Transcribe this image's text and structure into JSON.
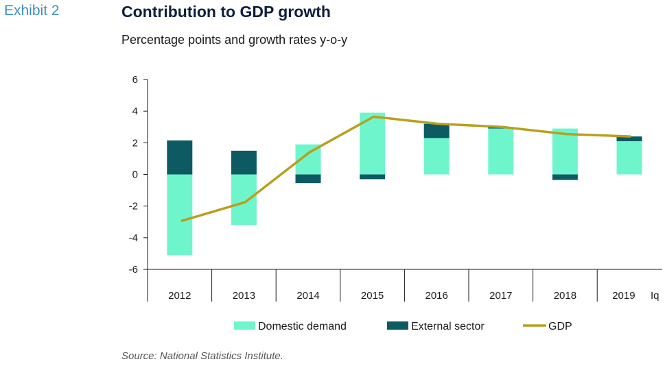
{
  "header": {
    "exhibit": "Exhibit 2",
    "title": "Contribution to GDP growth",
    "subtitle": "Percentage points and growth rates y-o-y"
  },
  "source": "Source: National Statistics Institute.",
  "colors": {
    "domestic": "#6ff5cc",
    "external": "#0d5a63",
    "gdp": "#b8a01e",
    "axis": "#1a1a1a"
  },
  "chart_data": {
    "type": "bar",
    "stacked": true,
    "categories": [
      "2012",
      "2013",
      "2014",
      "2015",
      "2016",
      "2017",
      "2018",
      "2019"
    ],
    "last_category_suffix": "Iq",
    "ylim": [
      -6,
      6
    ],
    "yticks": [
      "6",
      "4",
      "2",
      "0",
      "-2",
      "-4",
      "-6"
    ],
    "series": [
      {
        "name": "Domestic demand",
        "kind": "bar",
        "values": [
          -5.1,
          -3.2,
          1.9,
          3.9,
          2.3,
          2.9,
          2.9,
          2.1
        ]
      },
      {
        "name": "External sector",
        "kind": "bar",
        "values": [
          2.15,
          1.5,
          -0.55,
          -0.3,
          0.9,
          0.1,
          -0.35,
          0.3
        ]
      },
      {
        "name": "GDP",
        "kind": "line",
        "values": [
          -2.95,
          -1.75,
          1.4,
          3.65,
          3.2,
          3.0,
          2.55,
          2.4
        ]
      }
    ],
    "legend": [
      "Domestic demand",
      "External sector",
      "GDP"
    ],
    "legend_position": "bottom",
    "grid": false
  }
}
